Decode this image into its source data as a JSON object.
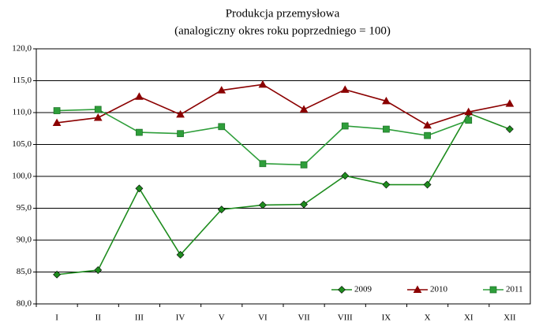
{
  "chart_data": {
    "type": "line",
    "title": "Produkcja przemysłowa",
    "subtitle": "(analogiczny okres roku poprzedniego = 100)",
    "categories": [
      "I",
      "II",
      "III",
      "IV",
      "V",
      "VI",
      "VII",
      "VIII",
      "IX",
      "X",
      "XI",
      "XII"
    ],
    "series": [
      {
        "name": "2009",
        "color": "#1e8c1e",
        "marker": "diamond",
        "values": [
          84.6,
          85.3,
          98.1,
          87.7,
          94.8,
          95.5,
          95.6,
          100.1,
          98.7,
          98.7,
          109.9,
          107.4
        ]
      },
      {
        "name": "2010",
        "color": "#8b0000",
        "marker": "triangle",
        "values": [
          108.4,
          109.2,
          112.5,
          109.7,
          113.5,
          114.4,
          110.5,
          113.6,
          111.8,
          108.0,
          110.1,
          111.4
        ]
      },
      {
        "name": "2011",
        "color": "#2e9e3a",
        "marker": "square",
        "values": [
          110.3,
          110.5,
          106.9,
          106.7,
          107.8,
          102.0,
          101.8,
          107.9,
          107.4,
          106.4,
          108.8,
          null
        ]
      }
    ],
    "ylim": [
      80,
      120
    ],
    "yticks": [
      {
        "value": 80,
        "label": "80,0"
      },
      {
        "value": 85,
        "label": "85,0"
      },
      {
        "value": 90,
        "label": "90,0"
      },
      {
        "value": 95,
        "label": "95,0"
      },
      {
        "value": 100,
        "label": "100,0"
      },
      {
        "value": 105,
        "label": "105,0"
      },
      {
        "value": 110,
        "label": "110,0"
      },
      {
        "value": 115,
        "label": "115,0"
      },
      {
        "value": 120,
        "label": "120,0"
      }
    ],
    "grid": true,
    "legend": "lower right"
  }
}
